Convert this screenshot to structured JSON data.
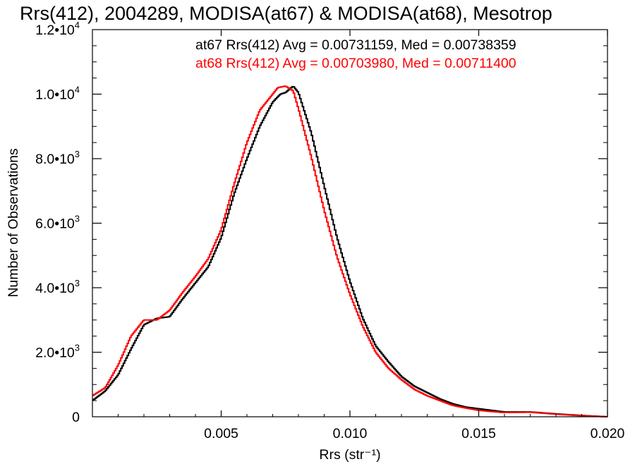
{
  "chart_data": {
    "type": "line",
    "title": "Rrs(412), 2004289, MODISA(at67) & MODISA(at68), Mesotrop",
    "xlabel": "Rrs (str⁻¹)",
    "ylabel": "Number of Observations",
    "xlim": [
      0.0,
      0.02
    ],
    "ylim": [
      0,
      12000
    ],
    "grid": false,
    "legend": "top-right",
    "x_ticks": [
      {
        "value": 0.005,
        "label": "0.005"
      },
      {
        "value": 0.01,
        "label": "0.010"
      },
      {
        "value": 0.015,
        "label": "0.015"
      },
      {
        "value": 0.02,
        "label": "0.020"
      }
    ],
    "y_ticks": [
      {
        "value": 0,
        "mant": "0",
        "exp": ""
      },
      {
        "value": 2000,
        "mant": "2.0•10",
        "exp": "3"
      },
      {
        "value": 4000,
        "mant": "4.0•10",
        "exp": "3"
      },
      {
        "value": 6000,
        "mant": "6.0•10",
        "exp": "3"
      },
      {
        "value": 8000,
        "mant": "8.0•10",
        "exp": "3"
      },
      {
        "value": 10000,
        "mant": "1.0•10",
        "exp": "4"
      },
      {
        "value": 12000,
        "mant": "1.2•10",
        "exp": "4"
      }
    ],
    "series": [
      {
        "name": "at67",
        "label": "at67 Rrs(412) Avg = 0.00731159, Med = 0.00738359",
        "color": "#000000",
        "x": [
          0.0,
          0.0005,
          0.001,
          0.0015,
          0.002,
          0.0025,
          0.003,
          0.0035,
          0.004,
          0.0045,
          0.005,
          0.0055,
          0.006,
          0.0065,
          0.007,
          0.0073,
          0.0075,
          0.0078,
          0.008,
          0.0085,
          0.009,
          0.0095,
          0.01,
          0.0105,
          0.011,
          0.0115,
          0.012,
          0.0125,
          0.013,
          0.0135,
          0.014,
          0.0145,
          0.015,
          0.0155,
          0.016,
          0.017,
          0.018,
          0.019,
          0.02
        ],
        "y": [
          500,
          800,
          1300,
          2100,
          2850,
          3050,
          3100,
          3650,
          4150,
          4650,
          5550,
          6900,
          8000,
          9000,
          9750,
          10000,
          10050,
          10250,
          10050,
          8800,
          7150,
          5550,
          4200,
          3050,
          2200,
          1700,
          1250,
          950,
          750,
          550,
          400,
          300,
          250,
          200,
          150,
          150,
          90,
          40,
          0
        ]
      },
      {
        "name": "at68",
        "label": "at68 Rrs(412) Avg = 0.00703980, Med = 0.00711400",
        "color": "#ff0000",
        "x": [
          0.0,
          0.0005,
          0.001,
          0.0015,
          0.002,
          0.0025,
          0.003,
          0.0035,
          0.004,
          0.0045,
          0.005,
          0.0055,
          0.006,
          0.0065,
          0.007,
          0.0072,
          0.0075,
          0.0078,
          0.008,
          0.0085,
          0.009,
          0.0095,
          0.01,
          0.0105,
          0.011,
          0.0115,
          0.012,
          0.0125,
          0.013,
          0.0135,
          0.014,
          0.0145,
          0.015,
          0.0155,
          0.016,
          0.017,
          0.018,
          0.019,
          0.02
        ],
        "y": [
          650,
          900,
          1600,
          2500,
          3000,
          3000,
          3300,
          3850,
          4350,
          4900,
          5800,
          7200,
          8500,
          9500,
          10000,
          10200,
          10250,
          10100,
          9550,
          8050,
          6400,
          4950,
          3800,
          2800,
          2000,
          1500,
          1150,
          850,
          650,
          500,
          350,
          270,
          200,
          160,
          130,
          140,
          80,
          30,
          0
        ]
      }
    ]
  }
}
